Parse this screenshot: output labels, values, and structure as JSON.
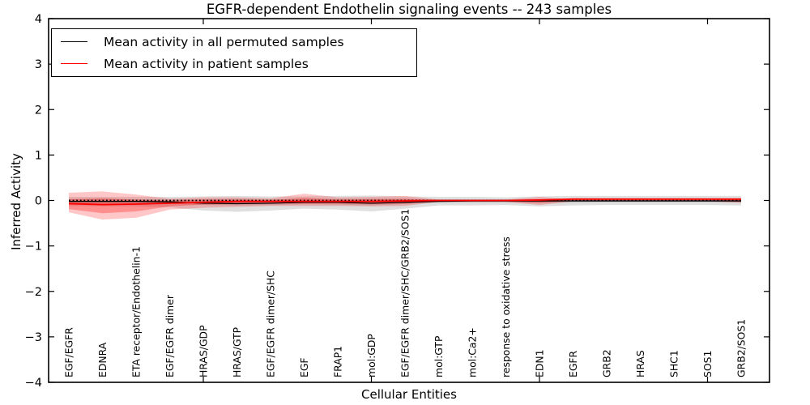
{
  "chart_data": {
    "type": "line",
    "title": "EGFR-dependent Endothelin signaling events -- 243 samples",
    "xlabel": "Cellular Entities",
    "ylabel": "Inferred Activity",
    "ylim": [
      -4,
      4
    ],
    "yticks": [
      4,
      3,
      2,
      1,
      0,
      -1,
      -2,
      -3,
      -4
    ],
    "ytick_labels": [
      "4",
      "3",
      "2",
      "1",
      "0",
      "−1",
      "−2",
      "−3",
      "−4"
    ],
    "x_major_tick_positions": [
      5,
      10,
      15,
      20
    ],
    "grid": false,
    "legend_position": "upper left",
    "categories": [
      "EGF/EGFR",
      "EDNRA",
      "ETA receptor/Endothelin-1",
      "EGF/EGFR dimer",
      "HRAS/GDP",
      "HRAS/GTP",
      "EGF/EGFR dimer/SHC",
      "EGF",
      "FRAP1",
      "mol:GDP",
      "EGF/EGFR dimer/SHC/GRB2/SOS1",
      "mol:GTP",
      "mol:Ca2+",
      "response to oxidative stress",
      "EDN1",
      "EGFR",
      "GRB2",
      "HRAS",
      "SHC1",
      "SOS1",
      "GRB2/SOS1"
    ],
    "series": [
      {
        "name": "zero-reference",
        "color": "#000000",
        "style": "dotted",
        "width": 1.8,
        "values": [
          0,
          0,
          0,
          0,
          0,
          0,
          0,
          0,
          0,
          0,
          0,
          0,
          0,
          0,
          0,
          0,
          0,
          0,
          0,
          0,
          0
        ]
      },
      {
        "name": "Mean activity in all permuted samples",
        "color": "#000000",
        "style": "solid",
        "width": 1.3,
        "values": [
          -0.02,
          -0.02,
          -0.02,
          -0.03,
          -0.06,
          -0.07,
          -0.06,
          -0.04,
          -0.04,
          -0.06,
          -0.04,
          -0.02,
          -0.01,
          -0.01,
          -0.01,
          -0.01,
          -0.01,
          -0.01,
          -0.01,
          -0.01,
          -0.01
        ]
      },
      {
        "name": "Mean activity in patient samples",
        "color": "#ff0000",
        "style": "solid",
        "width": 1.8,
        "values": [
          -0.07,
          -0.09,
          -0.08,
          -0.06,
          -0.04,
          -0.02,
          -0.02,
          -0.02,
          -0.02,
          -0.02,
          -0.01,
          0.0,
          0.0,
          0.0,
          0.01,
          0.03,
          0.03,
          0.03,
          0.03,
          0.03,
          0.03
        ]
      }
    ],
    "bands": [
      {
        "name": "permuted-range-outer",
        "color": "rgba(128,128,128,0.25)",
        "hi": [
          0.08,
          0.08,
          0.08,
          0.08,
          0.09,
          0.1,
          0.09,
          0.09,
          0.1,
          0.11,
          0.09,
          0.08,
          0.08,
          0.07,
          0.09,
          0.1,
          0.1,
          0.1,
          0.1,
          0.1,
          0.1
        ],
        "lo": [
          -0.12,
          -0.13,
          -0.13,
          -0.15,
          -0.22,
          -0.25,
          -0.22,
          -0.18,
          -0.2,
          -0.24,
          -0.18,
          -0.11,
          -0.11,
          -0.1,
          -0.13,
          -0.11,
          -0.1,
          -0.1,
          -0.1,
          -0.1,
          -0.11
        ]
      },
      {
        "name": "permuted-range-inner",
        "color": "rgba(128,128,128,0.25)",
        "hi": [
          0.03,
          0.03,
          0.03,
          0.03,
          0.03,
          0.04,
          0.03,
          0.03,
          0.04,
          0.04,
          0.03,
          0.03,
          0.03,
          0.03,
          0.03,
          0.05,
          0.05,
          0.05,
          0.05,
          0.05,
          0.05
        ],
        "lo": [
          -0.06,
          -0.06,
          -0.06,
          -0.07,
          -0.1,
          -0.11,
          -0.1,
          -0.08,
          -0.09,
          -0.11,
          -0.08,
          -0.05,
          -0.05,
          -0.05,
          -0.06,
          -0.05,
          -0.04,
          -0.04,
          -0.04,
          -0.04,
          -0.05
        ]
      },
      {
        "name": "patient-range-outer",
        "color": "rgba(255,0,0,0.22)",
        "hi": [
          0.17,
          0.2,
          0.13,
          0.04,
          0.07,
          0.07,
          0.05,
          0.15,
          0.07,
          0.08,
          0.1,
          0.02,
          0.02,
          0.02,
          0.08,
          0.02,
          0.02,
          0.02,
          0.02,
          0.02,
          0.04
        ],
        "lo": [
          -0.26,
          -0.42,
          -0.38,
          -0.2,
          -0.16,
          -0.14,
          -0.12,
          -0.12,
          -0.12,
          -0.13,
          -0.12,
          -0.03,
          -0.03,
          -0.03,
          -0.1,
          -0.02,
          -0.02,
          -0.02,
          -0.02,
          -0.02,
          -0.05
        ]
      },
      {
        "name": "patient-range-inner",
        "color": "rgba(255,0,0,0.28)",
        "hi": [
          0.03,
          0.05,
          0.02,
          0.0,
          0.02,
          0.02,
          0.01,
          0.06,
          0.02,
          0.03,
          0.04,
          0.01,
          0.01,
          0.01,
          0.03,
          0.01,
          0.01,
          0.01,
          0.01,
          0.01,
          0.02
        ],
        "lo": [
          -0.19,
          -0.28,
          -0.24,
          -0.13,
          -0.09,
          -0.08,
          -0.07,
          -0.07,
          -0.07,
          -0.08,
          -0.07,
          -0.02,
          -0.02,
          -0.02,
          -0.05,
          -0.01,
          -0.01,
          -0.01,
          -0.01,
          -0.01,
          -0.03
        ]
      }
    ]
  },
  "legend": {
    "entries": [
      {
        "label": "Mean activity in all permuted samples",
        "color": "#000000"
      },
      {
        "label": "Mean activity in patient samples",
        "color": "#ff0000"
      }
    ]
  },
  "colors": {
    "axis": "#000000",
    "background": "#ffffff",
    "patient": "#ff0000",
    "permuted": "#000000"
  }
}
